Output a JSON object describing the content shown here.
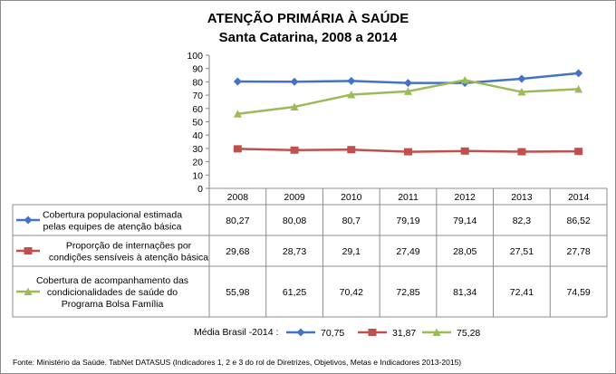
{
  "title": "ATENÇÃO PRIMÁRIA À SAÚDE",
  "subtitle": "Santa Catarina, 2008 a 2014",
  "chart_data": {
    "type": "line",
    "title": "ATENÇÃO PRIMÁRIA À SAÚDE",
    "subtitle": "Santa Catarina, 2008 a 2014",
    "x": [
      "2008",
      "2009",
      "2010",
      "2011",
      "2012",
      "2013",
      "2014"
    ],
    "ylim": [
      0,
      100
    ],
    "yticks": [
      0,
      10,
      20,
      30,
      40,
      50,
      60,
      70,
      80,
      90,
      100
    ],
    "grid": false,
    "legend": "data-table",
    "series": [
      {
        "name_lines": [
          "Cobertura  populacional estimada",
          "pelas equipes de atenção básica"
        ],
        "color": "#4472C4",
        "marker": "diamond",
        "values": [
          80.27,
          80.08,
          80.7,
          79.19,
          79.14,
          82.3,
          86.52
        ],
        "labels": [
          "80,27",
          "80,08",
          "80,7",
          "79,19",
          "79,14",
          "82,3",
          "86,52"
        ]
      },
      {
        "name_lines": [
          "Proporção de internações por",
          "condições sensíveis  à atenção básica"
        ],
        "color": "#C0504D",
        "marker": "square",
        "values": [
          29.68,
          28.73,
          29.1,
          27.49,
          28.05,
          27.51,
          27.78
        ],
        "labels": [
          "29,68",
          "28,73",
          "29,1",
          "27,49",
          "28,05",
          "27,51",
          "27,78"
        ]
      },
      {
        "name_lines": [
          "Cobertura de acompanhamento das",
          "condicionalidades de saúde do",
          "Programa Bolsa Família"
        ],
        "color": "#9BBB59",
        "marker": "triangle",
        "values": [
          55.98,
          61.25,
          70.42,
          72.85,
          81.34,
          72.41,
          74.59
        ],
        "labels": [
          "55,98",
          "61,25",
          "70,42",
          "72,85",
          "81,34",
          "72,41",
          "74,59"
        ]
      }
    ]
  },
  "average": {
    "label": "Média Brasil -2014 :",
    "items": [
      {
        "color": "#4472C4",
        "marker": "diamond",
        "value": "70,75"
      },
      {
        "color": "#C0504D",
        "marker": "square",
        "value": "31,87"
      },
      {
        "color": "#9BBB59",
        "marker": "triangle",
        "value": "75,28"
      }
    ]
  },
  "source": "Fonte: Ministério da Saúde. TabNet DATASUS (Indicadores 1, 2 e 3 do rol de Diretrizes, Objetivos, Metas e Indicadores 2013-2015)"
}
